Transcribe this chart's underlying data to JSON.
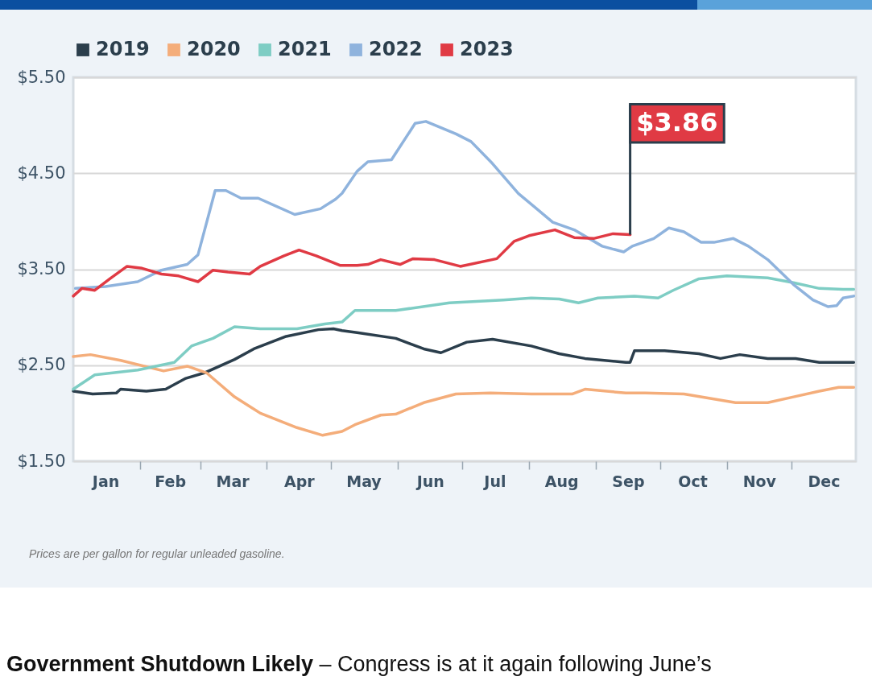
{
  "chart_data": {
    "type": "line",
    "xlim": [
      "--01-01",
      "--12-31"
    ],
    "xticks": [
      {
        "value": "--01-16",
        "label": "Jan"
      },
      {
        "value": "--02-01",
        "label": null
      },
      {
        "value": "--02-15",
        "label": "Feb"
      },
      {
        "value": "--03-01",
        "label": null
      },
      {
        "value": "--03-16",
        "label": "Mar"
      },
      {
        "value": "--04-01",
        "label": null
      },
      {
        "value": "--04-16",
        "label": "Apr"
      },
      {
        "value": "--05-01",
        "label": null
      },
      {
        "value": "--05-16",
        "label": "May"
      },
      {
        "value": "--06-01",
        "label": null
      },
      {
        "value": "--06-16",
        "label": "Jun"
      },
      {
        "value": "--07-01",
        "label": null
      },
      {
        "value": "--07-16",
        "label": "Jul"
      },
      {
        "value": "--08-01",
        "label": null
      },
      {
        "value": "--08-16",
        "label": "Aug"
      },
      {
        "value": "--09-01",
        "label": null
      },
      {
        "value": "--09-16",
        "label": "Sep"
      },
      {
        "value": "--10-01",
        "label": null
      },
      {
        "value": "--10-16",
        "label": "Oct"
      },
      {
        "value": "--11-01",
        "label": null
      },
      {
        "value": "--11-16",
        "label": "Nov"
      },
      {
        "value": "--12-01",
        "label": null
      },
      {
        "value": "--12-16",
        "label": "Dec"
      }
    ],
    "ylim": [
      1.5,
      5.5
    ],
    "yticks": [
      {
        "value": 1.5,
        "label": "$1.50"
      },
      {
        "value": 2.5,
        "label": "$2.50"
      },
      {
        "value": 3.5,
        "label": "$3.50"
      },
      {
        "value": 4.5,
        "label": "$4.50"
      },
      {
        "value": 5.5,
        "label": "$5.50"
      }
    ],
    "grid": "y",
    "legend": "top",
    "series": [
      {
        "name": "2019",
        "color": "#2b3e4c",
        "x": [
          "--01-01",
          "--01-10",
          "--01-21",
          "--01-23",
          "--02-04",
          "--02-13",
          "--02-22",
          "--03-03",
          "--03-17",
          "--03-26",
          "--04-10",
          "--04-25",
          "--05-02",
          "--05-06",
          "--05-13",
          "--05-31",
          "--06-13",
          "--06-21",
          "--07-03",
          "--07-15",
          "--08-02",
          "--08-15",
          "--08-27",
          "--09-15",
          "--09-17",
          "--09-19",
          "--10-03",
          "--10-19",
          "--10-29",
          "--11-07",
          "--11-20",
          "--12-03",
          "--12-14",
          "--12-25",
          "--12-30"
        ],
        "values": [
          2.23,
          2.2,
          2.21,
          2.25,
          2.23,
          2.25,
          2.36,
          2.42,
          2.56,
          2.67,
          2.8,
          2.87,
          2.88,
          2.86,
          2.84,
          2.78,
          2.67,
          2.63,
          2.74,
          2.77,
          2.7,
          2.62,
          2.57,
          2.53,
          2.53,
          2.65,
          2.65,
          2.62,
          2.57,
          2.61,
          2.57,
          2.57,
          2.53,
          2.53,
          2.53
        ]
      },
      {
        "name": "2020",
        "color": "#f4ad7a",
        "x": [
          "--01-01",
          "--01-09",
          "--01-23",
          "--02-12",
          "--02-23",
          "--03-04",
          "--03-17",
          "--03-29",
          "--04-15",
          "--04-27",
          "--05-06",
          "--05-12",
          "--05-24",
          "--05-31",
          "--06-13",
          "--06-28",
          "--07-14",
          "--08-02",
          "--08-21",
          "--08-27",
          "--09-15",
          "--09-24",
          "--10-12",
          "--11-05",
          "--11-20",
          "--12-02",
          "--12-14",
          "--12-23",
          "--12-30"
        ],
        "values": [
          2.59,
          2.61,
          2.55,
          2.44,
          2.49,
          2.42,
          2.17,
          2.0,
          1.85,
          1.77,
          1.81,
          1.88,
          1.98,
          1.99,
          2.11,
          2.2,
          2.21,
          2.2,
          2.2,
          2.25,
          2.21,
          2.21,
          2.2,
          2.11,
          2.11,
          2.17,
          2.23,
          2.27,
          2.27
        ]
      },
      {
        "name": "2021",
        "color": "#7ecdc4",
        "x": [
          "--01-01",
          "--01-11",
          "--01-31",
          "--02-17",
          "--02-25",
          "--03-07",
          "--03-17",
          "--03-29",
          "--04-15",
          "--04-28",
          "--05-06",
          "--05-12",
          "--05-31",
          "--06-25",
          "--07-20",
          "--08-02",
          "--08-15",
          "--08-24",
          "--09-02",
          "--09-19",
          "--09-30",
          "--10-07",
          "--10-19",
          "--11-01",
          "--11-20",
          "--12-02",
          "--12-14",
          "--12-25",
          "--12-30"
        ],
        "values": [
          2.25,
          2.4,
          2.45,
          2.53,
          2.7,
          2.78,
          2.9,
          2.88,
          2.88,
          2.93,
          2.95,
          3.07,
          3.07,
          3.15,
          3.18,
          3.2,
          3.19,
          3.15,
          3.2,
          3.22,
          3.2,
          3.28,
          3.4,
          3.43,
          3.41,
          3.36,
          3.3,
          3.29,
          3.29
        ]
      },
      {
        "name": "2022",
        "color": "#8fb3dd",
        "x": [
          "--01-02",
          "--01-16",
          "--01-31",
          "--02-11",
          "--02-23",
          "--02-28",
          "--03-08",
          "--03-13",
          "--03-20",
          "--03-28",
          "--04-14",
          "--04-26",
          "--05-03",
          "--05-06",
          "--05-13",
          "--05-18",
          "--05-29",
          "--06-09",
          "--06-14",
          "--06-28",
          "--07-05",
          "--07-15",
          "--07-27",
          "--08-12",
          "--08-22",
          "--09-04",
          "--09-14",
          "--09-18",
          "--09-28",
          "--10-05",
          "--10-12",
          "--10-20",
          "--10-26",
          "--11-04",
          "--11-11",
          "--11-20",
          "--12-02",
          "--12-11",
          "--12-18",
          "--12-22",
          "--12-25",
          "--12-30"
        ],
        "values": [
          3.3,
          3.32,
          3.37,
          3.49,
          3.55,
          3.65,
          4.32,
          4.32,
          4.24,
          4.24,
          4.07,
          4.13,
          4.23,
          4.29,
          4.52,
          4.62,
          4.64,
          5.02,
          5.04,
          4.91,
          4.83,
          4.6,
          4.29,
          3.99,
          3.91,
          3.74,
          3.68,
          3.74,
          3.82,
          3.93,
          3.89,
          3.78,
          3.78,
          3.82,
          3.74,
          3.6,
          3.34,
          3.18,
          3.11,
          3.12,
          3.2,
          3.22
        ]
      },
      {
        "name": "2023",
        "color": "#e03a44",
        "x": [
          "--01-01",
          "--01-05",
          "--01-11",
          "--01-18",
          "--01-26",
          "--02-02",
          "--02-11",
          "--02-19",
          "--02-28",
          "--03-07",
          "--03-14",
          "--03-24",
          "--03-29",
          "--04-09",
          "--04-16",
          "--04-24",
          "--05-05",
          "--05-13",
          "--05-18",
          "--05-24",
          "--06-02",
          "--06-08",
          "--06-18",
          "--06-30",
          "--07-17",
          "--07-25",
          "--08-01",
          "--08-13",
          "--08-22",
          "--08-31",
          "--09-09",
          "--09-17"
        ],
        "values": [
          3.22,
          3.3,
          3.28,
          3.4,
          3.53,
          3.51,
          3.45,
          3.43,
          3.37,
          3.49,
          3.47,
          3.45,
          3.53,
          3.64,
          3.7,
          3.64,
          3.54,
          3.54,
          3.55,
          3.6,
          3.55,
          3.61,
          3.6,
          3.53,
          3.61,
          3.79,
          3.85,
          3.91,
          3.83,
          3.82,
          3.87,
          3.86
        ]
      }
    ],
    "annotations": [
      "Prices are per gallon for regular unleaded gasoline.",
      {
        "text": "$3.86",
        "x": "--09-17",
        "y": 3.86
      },
      "Government Shutdown Likely",
      "– Congress is at it again following June’s"
    ]
  }
}
